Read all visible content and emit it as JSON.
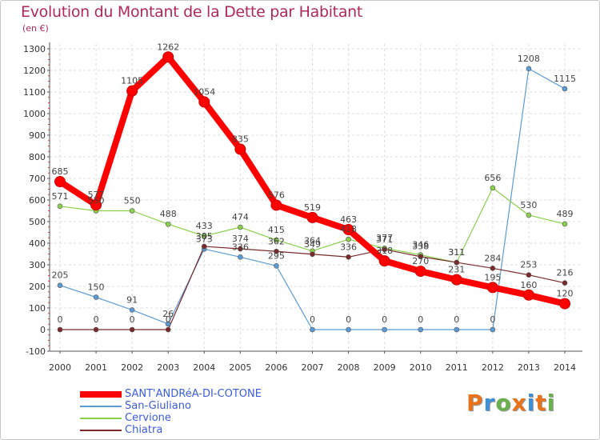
{
  "title": "Evolution du Montant de la Dette par Habitant",
  "subtitle": "(en €)",
  "logo": {
    "text": "Proxiti",
    "colors": [
      "#e8731a",
      "#3d8fd6",
      "#6ab04c",
      "#e8731a",
      "#3d8fd6",
      "#e8731a",
      "#6ab04c"
    ]
  },
  "chart_data": {
    "type": "line",
    "x": [
      "2000",
      "2001",
      "2002",
      "2003",
      "2004",
      "2005",
      "2006",
      "2007",
      "2008",
      "2009",
      "2010",
      "2011",
      "2012",
      "2013",
      "2014"
    ],
    "ylim": [
      -100,
      1300
    ],
    "yticks": [
      -100,
      0,
      100,
      200,
      300,
      400,
      500,
      600,
      700,
      800,
      900,
      1000,
      1100,
      1200,
      1300
    ],
    "grid": true,
    "legend_position": "bottom-left",
    "series": [
      {
        "name": "SANT'ANDRéA-DI-COTONE",
        "color": "#ff0000",
        "values": [
          685,
          577,
          1105,
          1262,
          1054,
          835,
          576,
          519,
          463,
          318,
          270,
          231,
          195,
          160,
          120
        ],
        "labels": [
          "685",
          "577",
          "1105",
          "1262",
          "1054",
          "835",
          "576",
          "519",
          "463",
          "318",
          "270",
          "231",
          "195",
          "160",
          "120"
        ]
      },
      {
        "name": "San-Giuliano",
        "color": "#5b9bd5",
        "values": [
          205,
          150,
          91,
          26,
          373,
          336,
          295,
          0,
          0,
          0,
          0,
          0,
          0,
          1208,
          1115
        ],
        "labels": [
          "205",
          "150",
          "91",
          "26",
          "373",
          "336",
          "295",
          "0",
          "0",
          "0",
          "0",
          "0",
          "0",
          "1208",
          "1115"
        ]
      },
      {
        "name": "Cervione",
        "color": "#8ad04a",
        "values": [
          571,
          550,
          550,
          488,
          433,
          474,
          415,
          364,
          418,
          377,
          346,
          311,
          656,
          530,
          489
        ],
        "labels": [
          "571",
          "550",
          "550",
          "488",
          "433",
          "474",
          "415",
          "364",
          "418",
          "377",
          "346",
          "311",
          "656",
          "530",
          "489"
        ]
      },
      {
        "name": "Chiatra",
        "color": "#7a2a2a",
        "values": [
          0,
          0,
          0,
          0,
          385,
          374,
          362,
          349,
          336,
          371,
          338,
          311,
          284,
          253,
          216
        ],
        "labels": [
          "0",
          "0",
          "0",
          "0",
          "385",
          "374",
          "362",
          "349",
          "336",
          "371",
          "338",
          "311",
          "284",
          "253",
          "216"
        ]
      }
    ]
  }
}
